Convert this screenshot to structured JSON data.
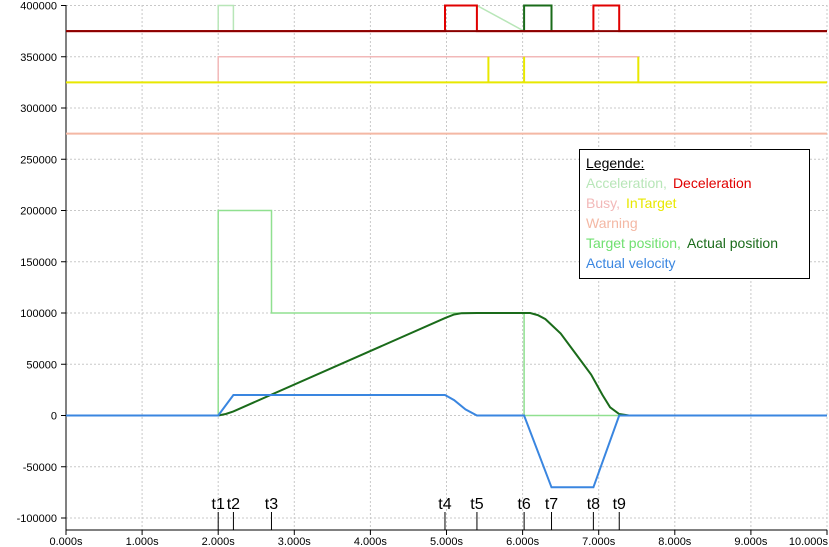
{
  "chart_data": {
    "type": "line",
    "xlim": [
      0,
      10
    ],
    "ylim": [
      -110000,
      400000
    ],
    "grid": true,
    "x_ticks": [
      {
        "value": 0,
        "label": "0.000s"
      },
      {
        "value": 1,
        "label": "1.000s"
      },
      {
        "value": 2,
        "label": "2.000s"
      },
      {
        "value": 3,
        "label": "3.000s"
      },
      {
        "value": 4,
        "label": "4.000s"
      },
      {
        "value": 5,
        "label": "5.000s"
      },
      {
        "value": 6,
        "label": "6.000s"
      },
      {
        "value": 7,
        "label": "7.000s"
      },
      {
        "value": 8,
        "label": "8.000s"
      },
      {
        "value": 9,
        "label": "9.000s"
      },
      {
        "value": 10,
        "label": "10.000s"
      }
    ],
    "y_ticks": [
      {
        "value": 400000,
        "label": "400000"
      },
      {
        "value": 350000,
        "label": "350000"
      },
      {
        "value": 300000,
        "label": "300000"
      },
      {
        "value": 250000,
        "label": "250000"
      },
      {
        "value": 200000,
        "label": "200000"
      },
      {
        "value": 150000,
        "label": "150000"
      },
      {
        "value": 100000,
        "label": "100000"
      },
      {
        "value": 50000,
        "label": "50000"
      },
      {
        "value": 0,
        "label": "0"
      },
      {
        "value": -50000,
        "label": "-50000"
      },
      {
        "value": -100000,
        "label": "-100000"
      }
    ],
    "markers": [
      {
        "label": "t1",
        "x": 2.0
      },
      {
        "label": "t2",
        "x": 2.2
      },
      {
        "label": "t3",
        "x": 2.7
      },
      {
        "label": "t4",
        "x": 4.98
      },
      {
        "label": "t5",
        "x": 5.4
      },
      {
        "label": "t6",
        "x": 6.02
      },
      {
        "label": "t7",
        "x": 6.38
      },
      {
        "label": "t8",
        "x": 6.93
      },
      {
        "label": "t9",
        "x": 7.27
      }
    ],
    "series": [
      {
        "name": "Acceleration",
        "color": "#b8e6b8",
        "width": 1.5,
        "points": [
          [
            0,
            375000
          ],
          [
            2.0,
            375000
          ],
          [
            2.0,
            400000
          ],
          [
            2.2,
            400000
          ],
          [
            2.2,
            375000
          ],
          [
            5.4,
            375000
          ],
          [
            5.4,
            400000
          ],
          [
            5.4,
            400000
          ],
          [
            6.02,
            375000
          ],
          [
            6.02,
            400000
          ],
          [
            6.38,
            400000
          ],
          [
            6.38,
            375000
          ],
          [
            10,
            375000
          ]
        ]
      },
      {
        "name": "Busy",
        "color": "#f2b8b8",
        "width": 1.5,
        "points": [
          [
            0,
            325000
          ],
          [
            2.0,
            325000
          ],
          [
            2.0,
            350000
          ],
          [
            7.52,
            350000
          ],
          [
            7.52,
            325000
          ],
          [
            10,
            325000
          ]
        ]
      },
      {
        "name": "InTarget",
        "color": "#e8e800",
        "width": 2,
        "points": [
          [
            0,
            325000
          ],
          [
            5.55,
            325000
          ],
          [
            5.55,
            350000
          ],
          [
            5.55,
            325000
          ],
          [
            6.02,
            325000
          ],
          [
            6.02,
            350000
          ],
          [
            6.02,
            325000
          ],
          [
            7.52,
            325000
          ],
          [
            7.52,
            350000
          ],
          [
            7.52,
            325000
          ],
          [
            10,
            325000
          ]
        ]
      },
      {
        "name": "Warning",
        "color": "#f4b8a4",
        "width": 2,
        "points": [
          [
            0,
            275000
          ],
          [
            10,
            275000
          ]
        ]
      },
      {
        "name": "Target position",
        "color": "#90e090",
        "width": 1.5,
        "points": [
          [
            0,
            0
          ],
          [
            2.0,
            0
          ],
          [
            2.0,
            200000
          ],
          [
            2.7,
            200000
          ],
          [
            2.7,
            100000
          ],
          [
            6.02,
            100000
          ],
          [
            6.02,
            0
          ],
          [
            10,
            0
          ]
        ]
      },
      {
        "name": "Actual position",
        "color": "#1a6b1a",
        "width": 2,
        "points": [
          [
            0,
            0
          ],
          [
            2.0,
            0
          ],
          [
            2.1,
            1500
          ],
          [
            2.2,
            4000
          ],
          [
            4.98,
            95000
          ],
          [
            5.1,
            98500
          ],
          [
            5.2,
            99800
          ],
          [
            5.4,
            100000
          ],
          [
            6.1,
            100000
          ],
          [
            6.2,
            98000
          ],
          [
            6.3,
            94000
          ],
          [
            6.5,
            80000
          ],
          [
            6.7,
            60000
          ],
          [
            6.9,
            40000
          ],
          [
            7.05,
            20000
          ],
          [
            7.15,
            8000
          ],
          [
            7.27,
            1500
          ],
          [
            7.4,
            0
          ],
          [
            10,
            0
          ]
        ]
      },
      {
        "name": "Actual velocity",
        "color": "#3a86e0",
        "width": 2,
        "points": [
          [
            0,
            0
          ],
          [
            2.0,
            0
          ],
          [
            2.2,
            20000
          ],
          [
            4.98,
            20000
          ],
          [
            5.1,
            15000
          ],
          [
            5.25,
            6000
          ],
          [
            5.4,
            0
          ],
          [
            6.02,
            0
          ],
          [
            6.38,
            -70000
          ],
          [
            6.93,
            -70000
          ],
          [
            7.27,
            0
          ],
          [
            10,
            0
          ]
        ]
      },
      {
        "name": "Deceleration",
        "color": "#e00000",
        "width": 2,
        "points": [
          [
            0,
            375000
          ],
          [
            4.98,
            375000
          ],
          [
            4.98,
            400000
          ],
          [
            5.4,
            400000
          ],
          [
            5.4,
            375000
          ],
          [
            6.02,
            375000
          ],
          [
            6.02,
            375000
          ],
          [
            6.93,
            375000
          ],
          [
            6.93,
            400000
          ],
          [
            7.27,
            400000
          ],
          [
            7.27,
            375000
          ],
          [
            10,
            375000
          ]
        ]
      },
      {
        "name": "Acceleration-dark",
        "color": "#1a6b1a",
        "width": 2,
        "points": [
          [
            6.02,
            375000
          ],
          [
            6.02,
            400000
          ],
          [
            6.38,
            400000
          ],
          [
            6.38,
            375000
          ]
        ]
      },
      {
        "name": "Deceleration-base",
        "color": "#8b0000",
        "width": 2,
        "points": [
          [
            0,
            375000
          ],
          [
            2.0,
            375000
          ],
          [
            2.2,
            375000
          ],
          [
            6.02,
            375000
          ],
          [
            6.38,
            375000
          ],
          [
            10,
            375000
          ]
        ]
      }
    ]
  },
  "legend": {
    "title": "Legende:",
    "rows": [
      [
        {
          "text": "Acceleration,",
          "color": "#b8e6b8"
        },
        {
          "text": "Deceleration",
          "color": "#e00000"
        }
      ],
      [
        {
          "text": "Busy,",
          "color": "#f2b8b8"
        },
        {
          "text": "InTarget",
          "color": "#e8e800"
        }
      ],
      [
        {
          "text": "Warning",
          "color": "#f4b8a4"
        }
      ],
      [
        {
          "text": "Target position,",
          "color": "#70e070"
        },
        {
          "text": "Actual position",
          "color": "#1a6b1a"
        }
      ],
      [
        {
          "text": "Actual velocity",
          "color": "#3a86e0"
        }
      ]
    ]
  }
}
